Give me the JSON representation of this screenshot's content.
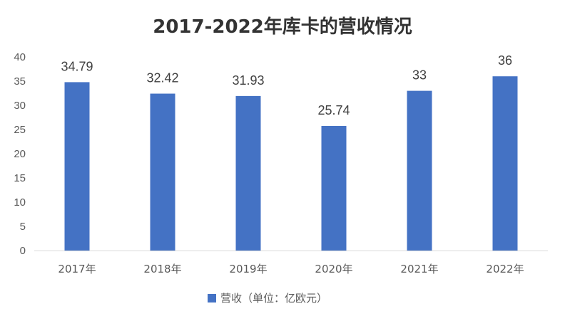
{
  "chart_data": {
    "type": "bar",
    "title": "2017-2022年库卡的营收情况",
    "categories": [
      "2017年",
      "2018年",
      "2019年",
      "2020年",
      "2021年",
      "2022年"
    ],
    "series": [
      {
        "name": "营收（单位：亿欧元）",
        "values": [
          34.79,
          32.42,
          31.93,
          25.74,
          33,
          36
        ],
        "labels": [
          "34.79",
          "32.42",
          "31.93",
          "25.74",
          "33",
          "36"
        ]
      }
    ],
    "ylim": [
      0,
      40
    ],
    "yticks": [
      "0",
      "5",
      "10",
      "15",
      "20",
      "25",
      "30",
      "35",
      "40"
    ],
    "legend_position": "bottom",
    "grid": false,
    "bar_color": "#4472C4"
  }
}
